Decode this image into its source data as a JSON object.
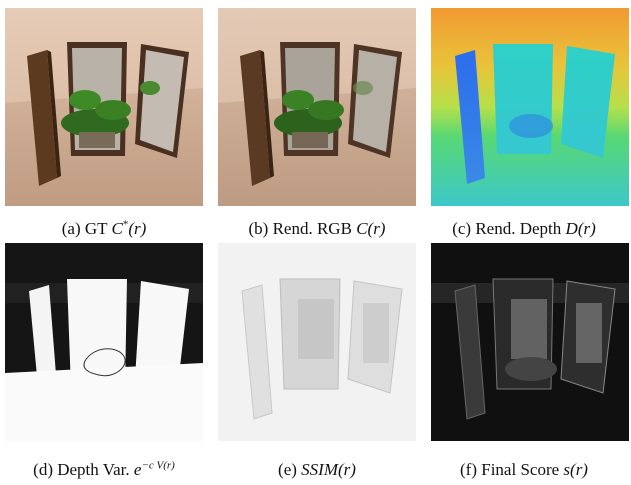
{
  "figure": {
    "panels": [
      {
        "id": "a",
        "prefix": "(a) GT ",
        "math_main": "C",
        "math_sup": "*",
        "math_arg": "(r)"
      },
      {
        "id": "b",
        "prefix": "(b) Rend. RGB ",
        "math_main": "C",
        "math_sup": "",
        "math_arg": "(r)"
      },
      {
        "id": "c",
        "prefix": "(c) Rend. Depth ",
        "math_main": "D",
        "math_sup": "",
        "math_arg": "(r)"
      },
      {
        "id": "d",
        "prefix": "(d) Depth Var. ",
        "math_main": "e",
        "math_sup": "−c V(r)",
        "math_arg": ""
      },
      {
        "id": "e",
        "prefix": "(e) ",
        "math_main": "SSIM",
        "math_sup": "",
        "math_arg": "(r)"
      },
      {
        "id": "f",
        "prefix": "(f) Final Score ",
        "math_main": "s",
        "math_sup": "",
        "math_arg": "(r)"
      }
    ]
  },
  "colors": {
    "wall": "#d8b8a0",
    "floor": "#c9a98f",
    "frame": "#5a3a22",
    "mirror": "#c8c0b8",
    "depth_far": "#f0a030",
    "depth_near": "#40c0e0",
    "depth_panel": "#3070e8",
    "score_bg": "#101010"
  }
}
